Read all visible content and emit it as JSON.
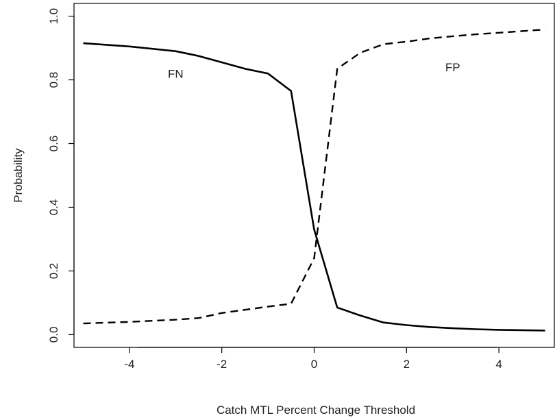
{
  "chart_data": {
    "type": "line",
    "title": "",
    "xlabel": "Catch MTL Percent Change Threshold",
    "ylabel": "Probability",
    "xlim": [
      -5.2,
      5.2
    ],
    "ylim": [
      -0.04,
      1.04
    ],
    "x_ticks": [
      -4,
      -2,
      0,
      2,
      4
    ],
    "x_tick_labels": [
      "-4",
      "-2",
      "0",
      "2",
      "4"
    ],
    "y_ticks": [
      0.0,
      0.2,
      0.4,
      0.6,
      0.8,
      1.0
    ],
    "y_tick_labels": [
      "0.0",
      "0.2",
      "0.4",
      "0.6",
      "0.8",
      "1.0"
    ],
    "grid": false,
    "legend": "none",
    "series": [
      {
        "name": "FN",
        "line_style": "solid",
        "x": [
          -5,
          -4,
          -3,
          -2.5,
          -2,
          -1.5,
          -1,
          -0.5,
          0,
          0.5,
          1,
          1.5,
          2,
          2.5,
          3,
          3.5,
          4,
          5
        ],
        "y": [
          0.915,
          0.905,
          0.89,
          0.875,
          0.855,
          0.835,
          0.82,
          0.765,
          0.33,
          0.085,
          0.06,
          0.038,
          0.03,
          0.024,
          0.02,
          0.017,
          0.015,
          0.013
        ]
      },
      {
        "name": "FP",
        "line_style": "dashed",
        "x": [
          -5,
          -4,
          -3,
          -2.5,
          -2,
          -1.5,
          -1,
          -0.5,
          0,
          0.5,
          1,
          1.5,
          2,
          2.5,
          3,
          3.5,
          4,
          5
        ],
        "y": [
          0.035,
          0.04,
          0.047,
          0.052,
          0.068,
          0.078,
          0.088,
          0.097,
          0.24,
          0.835,
          0.885,
          0.912,
          0.92,
          0.93,
          0.937,
          0.943,
          0.948,
          0.958
        ]
      }
    ],
    "annotations": [
      {
        "text": "FN",
        "x": -3,
        "y": 0.82
      },
      {
        "text": "FP",
        "x": 3,
        "y": 0.84
      }
    ]
  }
}
